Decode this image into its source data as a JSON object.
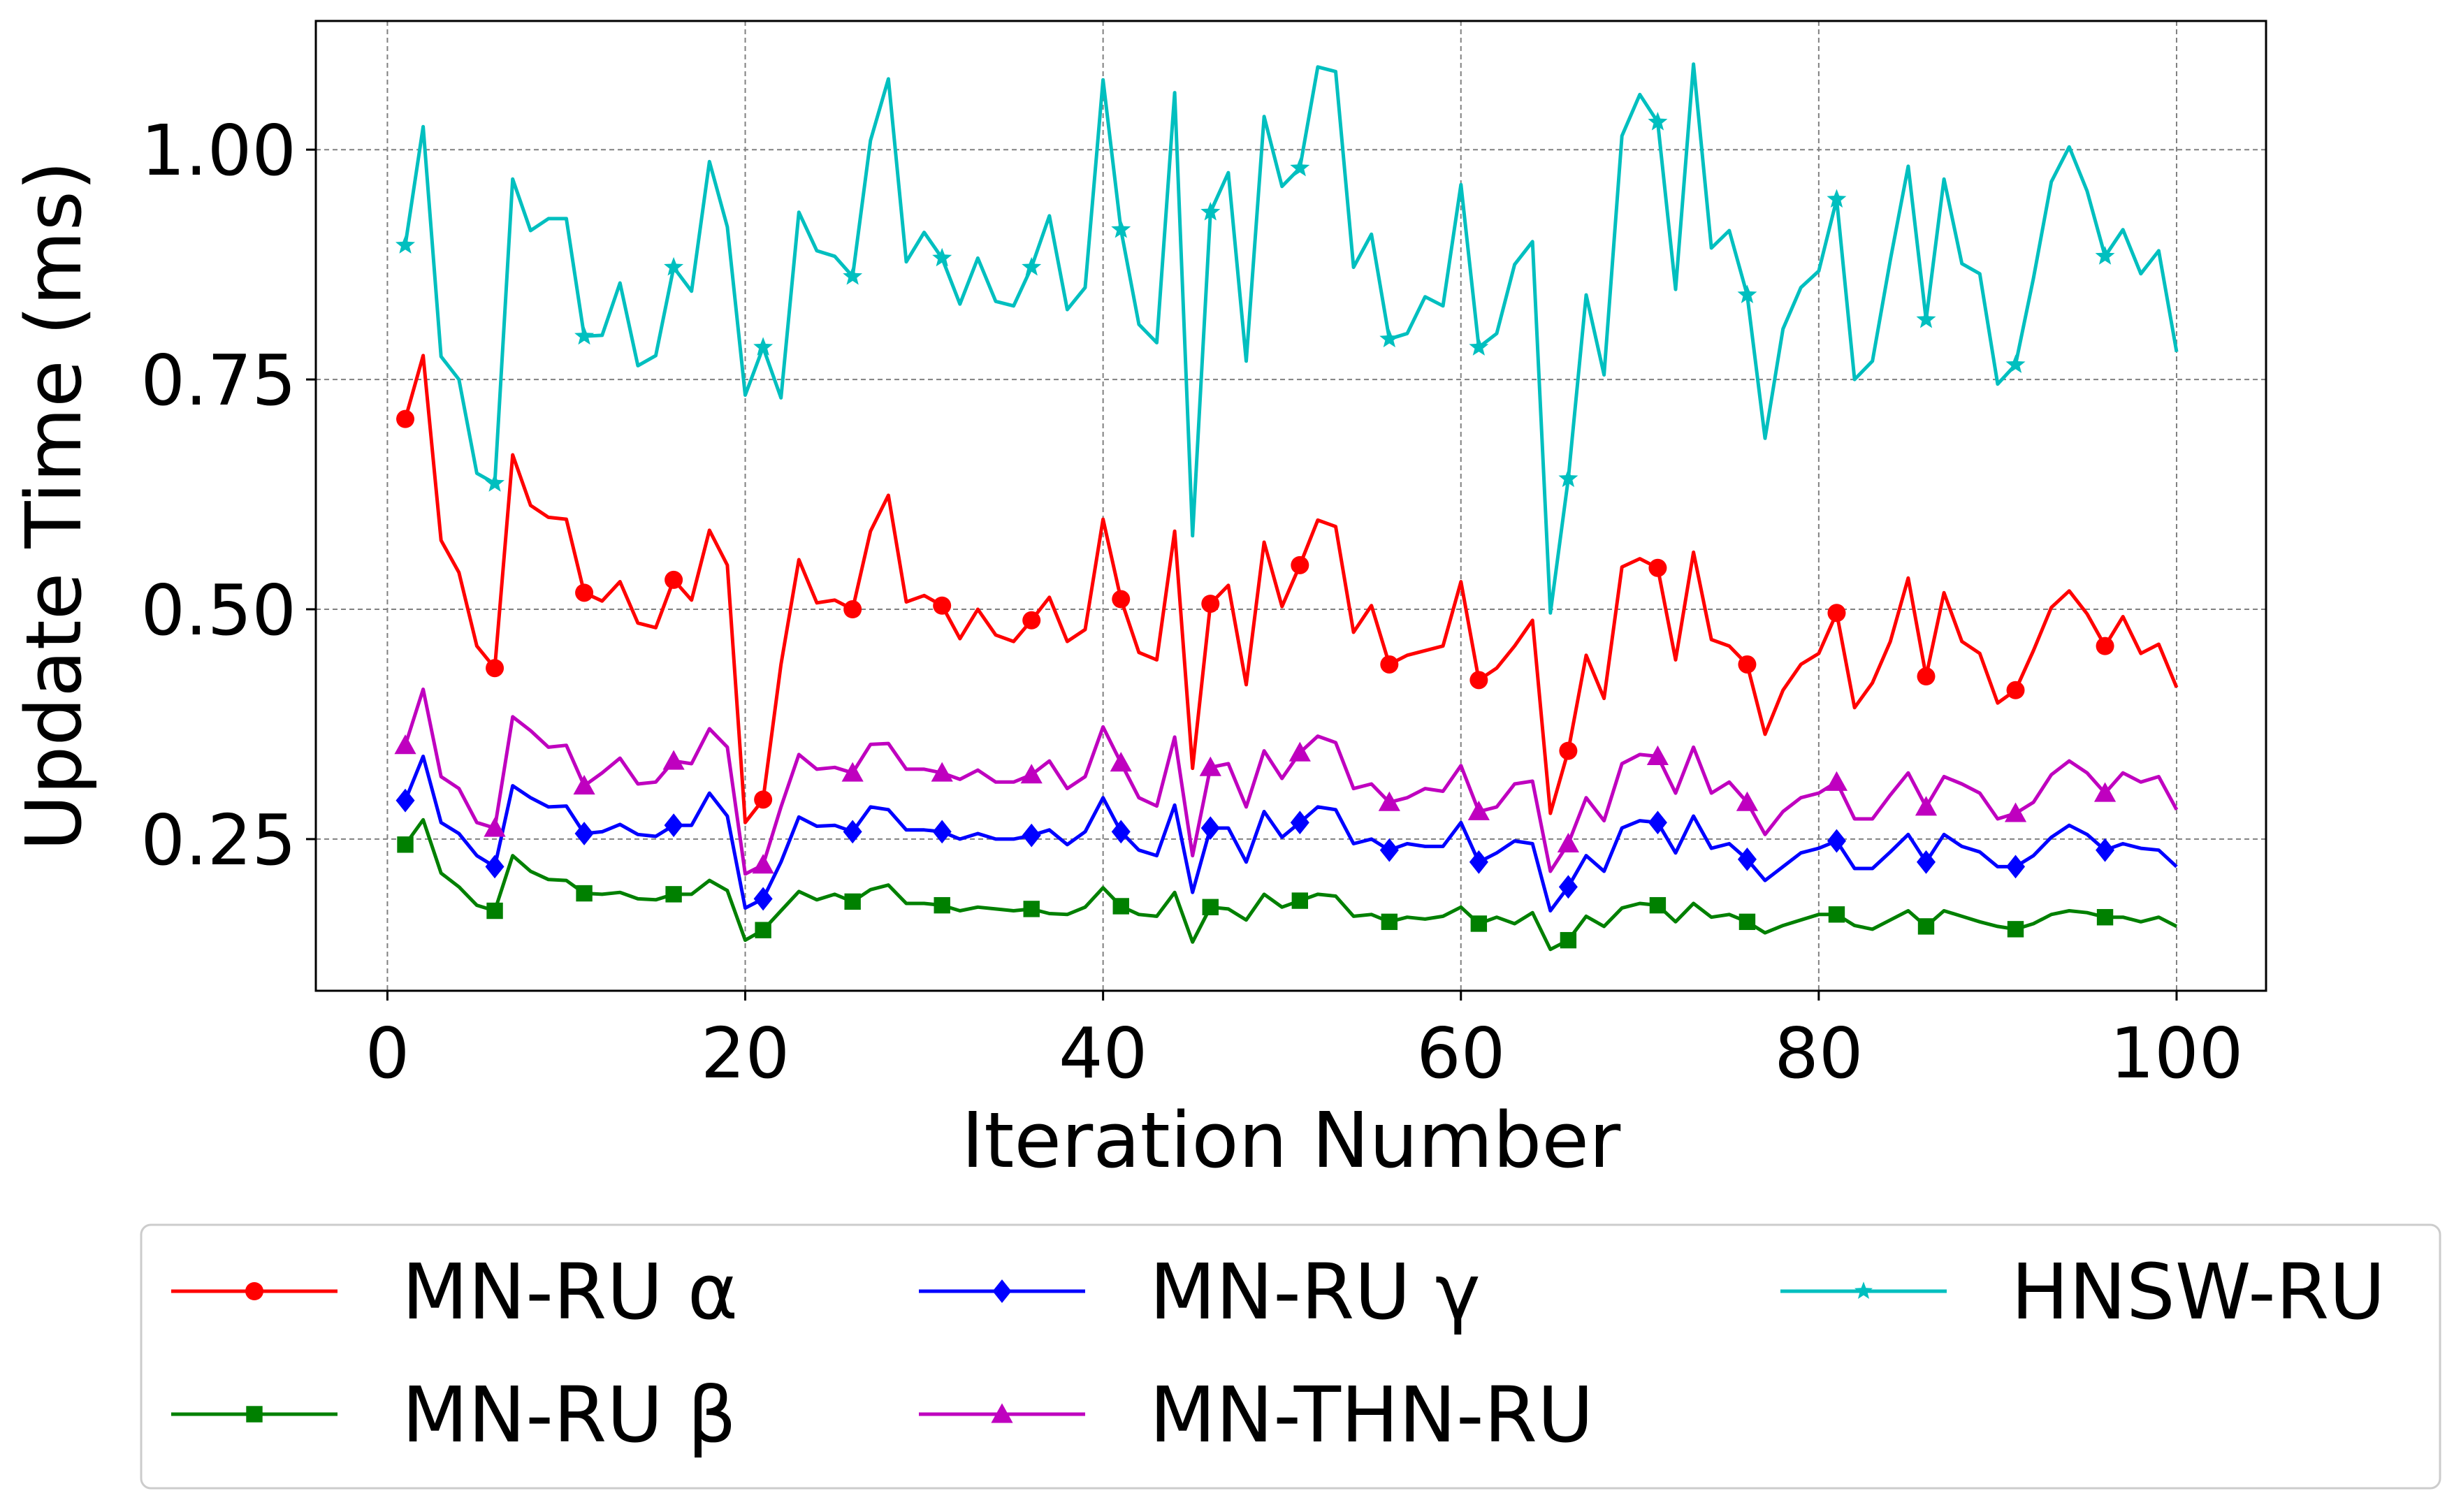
{
  "chart_data": {
    "type": "line",
    "xlabel": "Iteration Number",
    "ylabel": "Update Time (ms)",
    "xlim": [
      -4,
      105
    ],
    "ylim": [
      0.085,
      1.14
    ],
    "xticks": [
      0,
      20,
      40,
      60,
      80,
      100
    ],
    "yticks": [
      0.25,
      0.5,
      0.75,
      1.0
    ],
    "xtick_labels": [
      "0",
      "20",
      "40",
      "60",
      "80",
      "100"
    ],
    "ytick_labels": [
      "0.25",
      "0.50",
      "0.75",
      "1.00"
    ],
    "grid": true,
    "legend_position": "bottom-outside",
    "markevery_start": 1,
    "markevery_step": 5,
    "x": [
      1,
      2,
      3,
      4,
      5,
      6,
      7,
      8,
      9,
      10,
      11,
      12,
      13,
      14,
      15,
      16,
      17,
      18,
      19,
      20,
      21,
      22,
      23,
      24,
      25,
      26,
      27,
      28,
      29,
      30,
      31,
      32,
      33,
      34,
      35,
      36,
      37,
      38,
      39,
      40,
      41,
      42,
      43,
      44,
      45,
      46,
      47,
      48,
      49,
      50,
      51,
      52,
      53,
      54,
      55,
      56,
      57,
      58,
      59,
      60,
      61,
      62,
      63,
      64,
      65,
      66,
      67,
      68,
      69,
      70,
      71,
      72,
      73,
      74,
      75,
      76,
      77,
      78,
      79,
      80,
      81,
      82,
      83,
      84,
      85,
      86,
      87,
      88,
      89,
      90,
      91,
      92,
      93,
      94,
      95,
      96,
      97,
      98,
      99,
      100
    ],
    "series": [
      {
        "name": "MN-RU α",
        "color": "#ff0000",
        "marker": "circle",
        "values": [
          0.707,
          0.776,
          0.575,
          0.54,
          0.46,
          0.436,
          0.668,
          0.613,
          0.6,
          0.598,
          0.518,
          0.509,
          0.53,
          0.485,
          0.48,
          0.532,
          0.51,
          0.586,
          0.548,
          0.268,
          0.293,
          0.44,
          0.554,
          0.507,
          0.51,
          0.5,
          0.585,
          0.624,
          0.508,
          0.515,
          0.504,
          0.468,
          0.5,
          0.472,
          0.465,
          0.488,
          0.513,
          0.465,
          0.478,
          0.598,
          0.511,
          0.453,
          0.445,
          0.585,
          0.327,
          0.506,
          0.526,
          0.418,
          0.573,
          0.503,
          0.548,
          0.597,
          0.59,
          0.475,
          0.504,
          0.44,
          0.45,
          0.455,
          0.46,
          0.53,
          0.423,
          0.436,
          0.46,
          0.488,
          0.278,
          0.346,
          0.45,
          0.403,
          0.546,
          0.555,
          0.545,
          0.445,
          0.562,
          0.467,
          0.46,
          0.44,
          0.364,
          0.412,
          0.44,
          0.452,
          0.496,
          0.393,
          0.42,
          0.465,
          0.534,
          0.427,
          0.518,
          0.465,
          0.452,
          0.398,
          0.412,
          0.455,
          0.502,
          0.52,
          0.495,
          0.46,
          0.492,
          0.452,
          0.462,
          0.415
        ]
      },
      {
        "name": "MN-RU β",
        "color": "#008000",
        "marker": "square",
        "values": [
          0.244,
          0.271,
          0.213,
          0.198,
          0.178,
          0.172,
          0.232,
          0.215,
          0.206,
          0.205,
          0.191,
          0.19,
          0.192,
          0.185,
          0.184,
          0.19,
          0.19,
          0.205,
          0.194,
          0.14,
          0.151,
          0.172,
          0.193,
          0.184,
          0.19,
          0.182,
          0.195,
          0.2,
          0.18,
          0.18,
          0.178,
          0.172,
          0.176,
          0.174,
          0.172,
          0.174,
          0.169,
          0.168,
          0.176,
          0.197,
          0.177,
          0.168,
          0.166,
          0.192,
          0.138,
          0.176,
          0.174,
          0.162,
          0.19,
          0.176,
          0.183,
          0.19,
          0.188,
          0.166,
          0.168,
          0.16,
          0.165,
          0.163,
          0.166,
          0.176,
          0.158,
          0.165,
          0.158,
          0.17,
          0.13,
          0.14,
          0.166,
          0.155,
          0.175,
          0.18,
          0.178,
          0.16,
          0.18,
          0.165,
          0.168,
          0.16,
          0.148,
          0.156,
          0.162,
          0.168,
          0.168,
          0.156,
          0.152,
          0.162,
          0.172,
          0.155,
          0.172,
          0.166,
          0.16,
          0.155,
          0.152,
          0.158,
          0.168,
          0.172,
          0.17,
          0.165,
          0.165,
          0.16,
          0.165,
          0.155
        ]
      },
      {
        "name": "MN-RU γ",
        "color": "#0000ff",
        "marker": "diamond",
        "values": [
          0.292,
          0.34,
          0.268,
          0.256,
          0.232,
          0.22,
          0.308,
          0.295,
          0.285,
          0.286,
          0.256,
          0.258,
          0.266,
          0.255,
          0.253,
          0.265,
          0.265,
          0.3,
          0.275,
          0.175,
          0.185,
          0.225,
          0.274,
          0.264,
          0.265,
          0.258,
          0.285,
          0.282,
          0.26,
          0.26,
          0.258,
          0.25,
          0.256,
          0.25,
          0.25,
          0.254,
          0.26,
          0.244,
          0.258,
          0.295,
          0.258,
          0.238,
          0.232,
          0.287,
          0.192,
          0.262,
          0.262,
          0.225,
          0.28,
          0.252,
          0.268,
          0.285,
          0.282,
          0.245,
          0.25,
          0.238,
          0.245,
          0.242,
          0.242,
          0.268,
          0.225,
          0.235,
          0.248,
          0.245,
          0.172,
          0.198,
          0.232,
          0.215,
          0.262,
          0.27,
          0.268,
          0.235,
          0.275,
          0.24,
          0.245,
          0.228,
          0.205,
          0.22,
          0.235,
          0.24,
          0.248,
          0.218,
          0.218,
          0.236,
          0.255,
          0.225,
          0.255,
          0.242,
          0.236,
          0.22,
          0.22,
          0.232,
          0.252,
          0.265,
          0.255,
          0.238,
          0.245,
          0.24,
          0.238,
          0.22
        ]
      },
      {
        "name": "MN-THN-RU",
        "color": "#bf00bf",
        "marker": "triangle",
        "values": [
          0.352,
          0.413,
          0.318,
          0.305,
          0.268,
          0.262,
          0.383,
          0.368,
          0.35,
          0.352,
          0.308,
          0.322,
          0.338,
          0.31,
          0.312,
          0.335,
          0.332,
          0.37,
          0.35,
          0.212,
          0.222,
          0.285,
          0.342,
          0.326,
          0.328,
          0.322,
          0.353,
          0.354,
          0.326,
          0.326,
          0.322,
          0.315,
          0.325,
          0.312,
          0.312,
          0.32,
          0.335,
          0.305,
          0.318,
          0.372,
          0.333,
          0.295,
          0.286,
          0.361,
          0.232,
          0.328,
          0.332,
          0.285,
          0.346,
          0.316,
          0.344,
          0.362,
          0.355,
          0.305,
          0.31,
          0.29,
          0.295,
          0.305,
          0.302,
          0.33,
          0.28,
          0.285,
          0.31,
          0.313,
          0.215,
          0.245,
          0.295,
          0.27,
          0.332,
          0.342,
          0.34,
          0.3,
          0.35,
          0.3,
          0.312,
          0.29,
          0.255,
          0.28,
          0.295,
          0.3,
          0.312,
          0.272,
          0.272,
          0.298,
          0.322,
          0.285,
          0.318,
          0.31,
          0.3,
          0.272,
          0.278,
          0.29,
          0.32,
          0.335,
          0.322,
          0.3,
          0.322,
          0.312,
          0.318,
          0.282
        ]
      },
      {
        "name": "HNSW-RU",
        "color": "#00bfbf",
        "marker": "star",
        "values": [
          0.896,
          1.025,
          0.775,
          0.75,
          0.648,
          0.637,
          0.968,
          0.912,
          0.925,
          0.925,
          0.797,
          0.798,
          0.855,
          0.765,
          0.776,
          0.872,
          0.846,
          0.987,
          0.916,
          0.733,
          0.785,
          0.73,
          0.932,
          0.89,
          0.884,
          0.862,
          1.01,
          1.077,
          0.878,
          0.91,
          0.882,
          0.832,
          0.882,
          0.835,
          0.83,
          0.872,
          0.928,
          0.826,
          0.85,
          1.076,
          0.913,
          0.81,
          0.79,
          1.062,
          0.58,
          0.932,
          0.975,
          0.77,
          1.036,
          0.96,
          0.98,
          1.09,
          1.085,
          0.872,
          0.908,
          0.794,
          0.8,
          0.84,
          0.83,
          0.962,
          0.785,
          0.8,
          0.875,
          0.9,
          0.496,
          0.642,
          0.842,
          0.755,
          1.015,
          1.06,
          1.03,
          0.848,
          1.093,
          0.893,
          0.912,
          0.842,
          0.686,
          0.805,
          0.85,
          0.868,
          0.946,
          0.75,
          0.77,
          0.88,
          0.982,
          0.815,
          0.968,
          0.876,
          0.865,
          0.745,
          0.766,
          0.86,
          0.965,
          1.003,
          0.955,
          0.884,
          0.913,
          0.865,
          0.89,
          0.78
        ]
      }
    ]
  }
}
